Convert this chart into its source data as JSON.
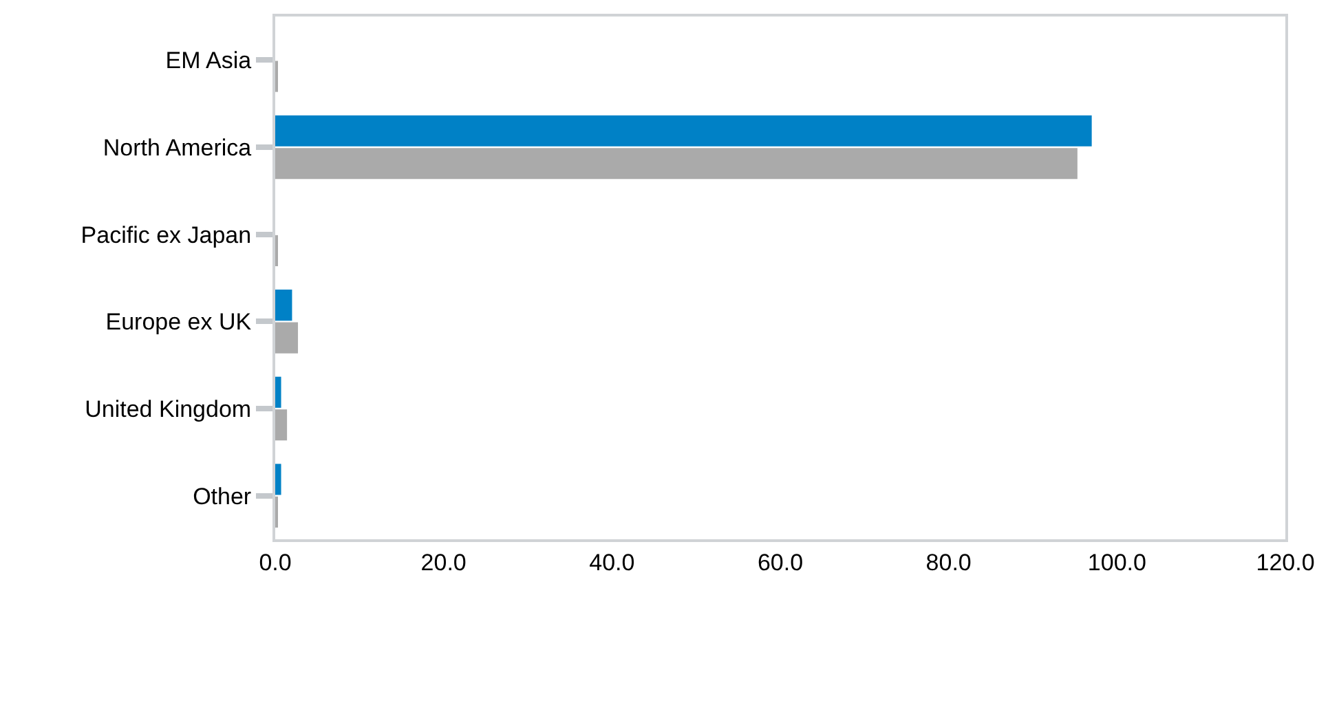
{
  "chart_data": {
    "type": "bar",
    "orientation": "horizontal",
    "categories": [
      "EM Asia",
      "North America",
      "Pacific ex Japan",
      "Europe ex UK",
      "United Kingdom",
      "Other"
    ],
    "series": [
      {
        "color": "#0081c6",
        "values": [
          0,
          97.0,
          0,
          2.0,
          0.7,
          0.7
        ]
      },
      {
        "color": "#aaaaaa",
        "values": [
          0.2,
          95.3,
          0.2,
          2.7,
          1.4,
          0.2
        ]
      }
    ],
    "xlim": [
      0,
      120
    ],
    "xticks": [
      {
        "value": 0,
        "label": "0.0"
      },
      {
        "value": 20,
        "label": "20.0"
      },
      {
        "value": 40,
        "label": "40.0"
      },
      {
        "value": 60,
        "label": "60.0"
      },
      {
        "value": 80,
        "label": "80.0"
      },
      {
        "value": 100,
        "label": "100.0"
      },
      {
        "value": 120,
        "label": "120.0"
      }
    ],
    "grid": false
  }
}
